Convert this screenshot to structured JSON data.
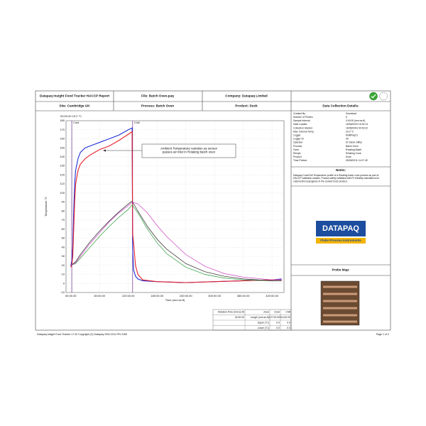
{
  "header": {
    "title": "Datapaq Insight Food Tracker HACCP Report",
    "file": "File: Batch Oven.paq",
    "company": "Company: Datapaq Limited",
    "site": "Site: Cambridge UK",
    "process": "Process: Batch Oven",
    "product": "Product: Duck",
    "details_title": "Data Collection Details:"
  },
  "chart_data": {
    "type": "line",
    "ylabel": "Temperature °C",
    "xlabel": "Time (mm:ss.ft)",
    "cursor_label": "00:00.00 19.2 °C",
    "annotation": "Ambient Temperature variation as sensor passes air inlet in Rotating batch oven",
    "zones": [
      {
        "label": "Cold",
        "start": 2
      },
      {
        "label": "Chill",
        "start": 129
      }
    ],
    "xlim": [
      -10,
      445
    ],
    "ylim": [
      -10,
      180
    ],
    "grid": true,
    "xticks": [
      {
        "value": 0,
        "label": "00:00.00"
      },
      {
        "value": 60,
        "label": "60:00.00"
      },
      {
        "value": 120,
        "label": "120:00.00"
      },
      {
        "value": 180,
        "label": "180:00.00"
      },
      {
        "value": 240,
        "label": "240:00.00"
      },
      {
        "value": 300,
        "label": "300:00.00"
      },
      {
        "value": 360,
        "label": "360:00.00"
      },
      {
        "value": 420,
        "label": "420:00.00"
      }
    ],
    "yticks": [
      -10,
      0,
      10,
      20,
      30,
      40,
      50,
      60,
      70,
      80,
      90,
      100,
      110,
      120,
      130,
      140,
      150,
      160,
      170,
      180
    ],
    "series": [
      {
        "color": "#1f2fd8",
        "x": [
          0,
          2,
          4,
          6,
          8,
          10,
          15,
          20,
          30,
          40,
          60,
          80,
          100,
          120,
          128,
          129,
          131,
          135,
          140,
          150,
          180,
          240,
          300,
          360,
          420,
          440
        ],
        "values": [
          19,
          25,
          40,
          80,
          110,
          125,
          138,
          145,
          150,
          152,
          156,
          160,
          164,
          170,
          172,
          40,
          15,
          8,
          5,
          3,
          2,
          1,
          2,
          3,
          4,
          5
        ]
      },
      {
        "color": "#e8202a",
        "x": [
          0,
          2,
          4,
          6,
          8,
          10,
          15,
          20,
          30,
          40,
          60,
          80,
          100,
          120,
          128,
          129,
          131,
          135,
          140,
          150,
          180,
          240,
          300,
          360,
          420,
          440
        ],
        "values": [
          18,
          20,
          30,
          60,
          90,
          110,
          125,
          132,
          138,
          142,
          148,
          152,
          158,
          165,
          168,
          55,
          45,
          20,
          10,
          4,
          2,
          1,
          2,
          3,
          4,
          4
        ]
      },
      {
        "color": "#2a9a3a",
        "x": [
          0,
          10,
          20,
          40,
          60,
          80,
          100,
          120,
          128,
          140,
          160,
          180,
          200,
          240,
          280,
          320,
          360,
          420,
          440
        ],
        "values": [
          20,
          22,
          28,
          40,
          52,
          63,
          73,
          82,
          87,
          78,
          60,
          45,
          33,
          18,
          10,
          6,
          4,
          3,
          3
        ]
      },
      {
        "color": "#222222",
        "x": [
          0,
          10,
          20,
          40,
          60,
          80,
          100,
          120,
          128,
          140,
          160,
          180,
          200,
          240,
          280,
          320,
          360,
          420,
          440
        ],
        "values": [
          20,
          24,
          32,
          46,
          58,
          69,
          79,
          88,
          91,
          80,
          63,
          49,
          38,
          22,
          13,
          8,
          5,
          3,
          3
        ]
      },
      {
        "color": "#d040c0",
        "x": [
          0,
          10,
          20,
          40,
          60,
          80,
          100,
          120,
          128,
          140,
          160,
          180,
          200,
          240,
          280,
          320,
          360,
          420,
          440
        ],
        "values": [
          20,
          23,
          30,
          44,
          56,
          68,
          78,
          86,
          90,
          88,
          78,
          64,
          52,
          32,
          19,
          11,
          7,
          4,
          4
        ]
      }
    ]
  },
  "zone_table": {
    "header": [
      "Rotation Time (mm:ss.ft)",
      "Zone",
      "Cook",
      "Chill"
    ],
    "rows": [
      [
        "34:00.00",
        "Length (mm:ss.ft)",
        "127:00.00",
        "313:00.00"
      ],
      [
        "",
        "Upper (°C)",
        "0.0",
        "0.0"
      ],
      [
        "",
        "Lower (°C)",
        "0.0",
        "0.0"
      ]
    ]
  },
  "details": [
    [
      "Created By",
      "Download"
    ],
    [
      "Number of Probes",
      "6"
    ],
    [
      "Sample Interval",
      "0:00.00 (mm:ss.ft)"
    ],
    [
      "Data Loaded",
      "16/06/2003 16:32:14"
    ],
    [
      "Collection Started",
      "16/06/2003 00:43:22"
    ],
    [
      "Max. Internal Temp.",
      "20.3 °C"
    ],
    [
      "Logger",
      "MultiPaq21"
    ],
    [
      "Logger ID",
      "90"
    ],
    [
      "Operator",
      "Dr Steve Giffey"
    ],
    [
      "Process",
      "Batch Oven"
    ],
    [
      "Oven",
      "Rotating Batch"
    ],
    [
      "Recipe",
      "Rotating Cook"
    ],
    [
      "Product",
      "Duck"
    ],
    [
      "Time Printed",
      "05/05/2011 11:07:49"
    ]
  ],
  "notes": {
    "title": "Notes:",
    "text": [
      "Datapaq CookChill Temperature profile of a Rotating batch cook process as part of",
      "HACCP validation studies. Product safety validated with F0 lethality calculations for",
      "Listeria Monocytogenes in the cooked Duck product."
    ]
  },
  "logo": {
    "brand": "DATAPAQ",
    "tagline": "Fluke Process Instruments"
  },
  "probe_map": {
    "title": "Probe Map:"
  },
  "footer": {
    "left": "Datapaq Insight Food Tracker v7.32  Copyright (C) Datapaq 2002-2011 PN 2169",
    "right": "Page 1 of 2"
  }
}
